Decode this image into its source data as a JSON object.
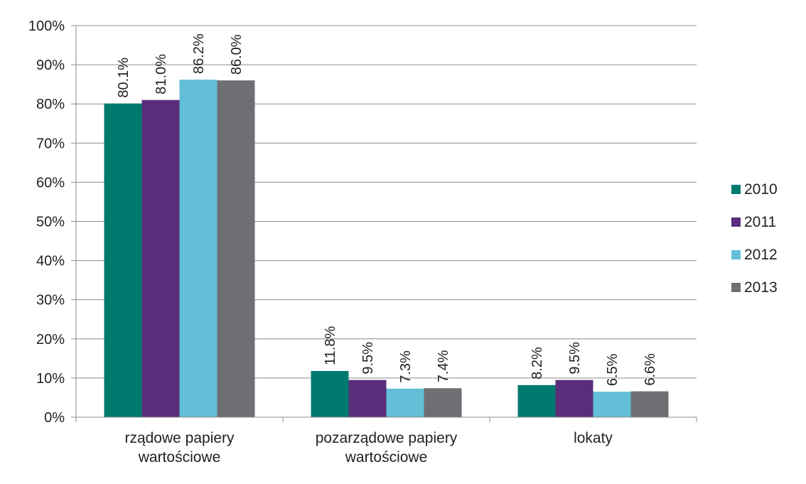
{
  "chart_data": {
    "type": "bar",
    "categories": [
      [
        "rządowe papiery",
        "wartościowe"
      ],
      [
        "pozarządowe papiery",
        "wartościowe"
      ],
      [
        "lokaty"
      ]
    ],
    "series": [
      {
        "name": "2010",
        "color": "#007A6E",
        "values": [
          80.1,
          11.8,
          8.2
        ],
        "labels": [
          "80.1%",
          "11.8%",
          "8.2%"
        ]
      },
      {
        "name": "2011",
        "color": "#5A2D7A",
        "values": [
          81.0,
          9.5,
          9.5
        ],
        "labels": [
          "81.0%",
          "9.5%",
          "9.5%"
        ]
      },
      {
        "name": "2012",
        "color": "#62BFD7",
        "values": [
          86.2,
          7.3,
          6.5
        ],
        "labels": [
          "86.2%",
          "7.3%",
          "6.5%"
        ]
      },
      {
        "name": "2013",
        "color": "#6F6F73",
        "values": [
          86.0,
          7.4,
          6.6
        ],
        "labels": [
          "86.0%",
          "7.4%",
          "6.6%"
        ]
      }
    ],
    "y_ticks": [
      "0%",
      "10%",
      "20%",
      "30%",
      "40%",
      "50%",
      "60%",
      "70%",
      "80%",
      "90%",
      "100%"
    ],
    "ylim": [
      0,
      100
    ],
    "grid": true,
    "legend_position": "right",
    "data_label_rotation": "vertical"
  }
}
